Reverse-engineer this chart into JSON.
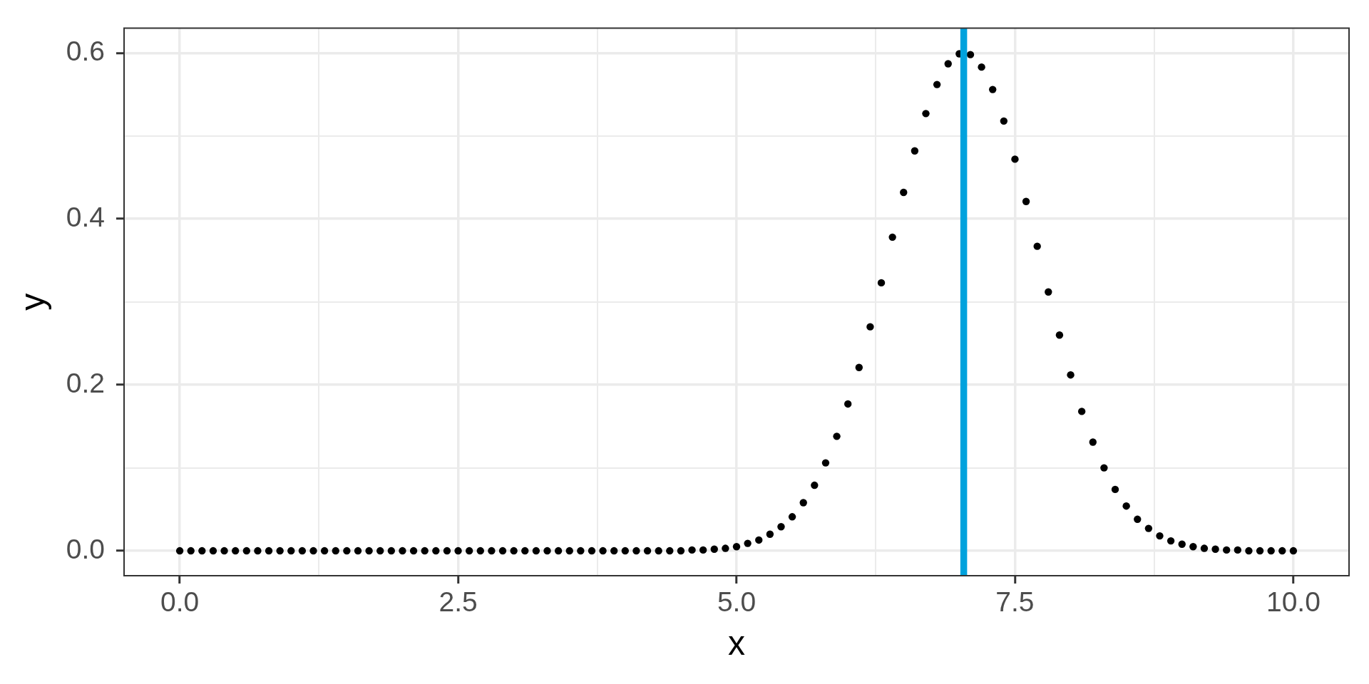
{
  "chart_data": {
    "type": "scatter",
    "xlabel": "x",
    "ylabel": "y",
    "x": [
      0,
      0.1,
      0.2,
      0.3,
      0.4,
      0.5,
      0.6,
      0.7,
      0.8,
      0.9,
      1,
      1.1,
      1.2,
      1.3,
      1.4,
      1.5,
      1.6,
      1.7,
      1.8,
      1.9,
      2,
      2.1,
      2.2,
      2.3,
      2.4,
      2.5,
      2.6,
      2.7,
      2.8,
      2.9,
      3,
      3.1,
      3.2,
      3.3,
      3.4,
      3.5,
      3.6,
      3.7,
      3.8,
      3.9,
      4,
      4.1,
      4.2,
      4.3,
      4.4,
      4.5,
      4.6,
      4.7,
      4.8,
      4.9,
      5,
      5.1,
      5.2,
      5.3,
      5.4,
      5.5,
      5.6,
      5.7,
      5.8,
      5.9,
      6,
      6.1,
      6.2,
      6.3,
      6.4,
      6.5,
      6.6,
      6.7,
      6.8,
      6.9,
      7,
      7.1,
      7.2,
      7.3,
      7.4,
      7.5,
      7.6,
      7.7,
      7.8,
      7.9,
      8,
      8.1,
      8.2,
      8.3,
      8.4,
      8.5,
      8.6,
      8.7,
      8.8,
      8.9,
      9,
      9.1,
      9.2,
      9.3,
      9.4,
      9.5,
      9.6,
      9.7,
      9.8,
      9.9,
      10
    ],
    "values": [
      0,
      0,
      0,
      0,
      0,
      0,
      0,
      0,
      0,
      0,
      0,
      0,
      0,
      0,
      0,
      0,
      0,
      0,
      0,
      0,
      0,
      0,
      0,
      0,
      0,
      0,
      0,
      0,
      0,
      0,
      0,
      0,
      0,
      0,
      0,
      0,
      0,
      0,
      0,
      0,
      0,
      0,
      0,
      0,
      0,
      0,
      0.001,
      0.001,
      0.002,
      0.003,
      0.005,
      0.009,
      0.013,
      0.02,
      0.029,
      0.041,
      0.058,
      0.079,
      0.106,
      0.138,
      0.177,
      0.221,
      0.27,
      0.323,
      0.378,
      0.432,
      0.482,
      0.527,
      0.562,
      0.587,
      0.599,
      0.598,
      0.583,
      0.556,
      0.518,
      0.472,
      0.421,
      0.367,
      0.312,
      0.26,
      0.212,
      0.168,
      0.131,
      0.1,
      0.074,
      0.054,
      0.038,
      0.027,
      0.018,
      0.012,
      0.008,
      0.005,
      0.003,
      0.002,
      0.001,
      0.001,
      0,
      0,
      0,
      0,
      0
    ],
    "color": "#000000",
    "marker": "circle",
    "xlim": [
      -0.5,
      10.5
    ],
    "xticks": [
      {
        "value": 0,
        "label": "0.0"
      },
      {
        "value": 1.25,
        "label": null
      },
      {
        "value": 2.5,
        "label": "2.5"
      },
      {
        "value": 3.75,
        "label": null
      },
      {
        "value": 5,
        "label": "5.0"
      },
      {
        "value": 6.25,
        "label": null
      },
      {
        "value": 7.5,
        "label": "7.5"
      },
      {
        "value": 8.75,
        "label": null
      },
      {
        "value": 10,
        "label": "10.0"
      }
    ],
    "ylim": [
      -0.03,
      0.63
    ],
    "yticks": [
      {
        "value": 0,
        "label": "0.0"
      },
      {
        "value": 0.1,
        "label": null
      },
      {
        "value": 0.2,
        "label": "0.2"
      },
      {
        "value": 0.3,
        "label": null
      },
      {
        "value": 0.4,
        "label": "0.4"
      },
      {
        "value": 0.5,
        "label": null
      },
      {
        "value": 0.6,
        "label": "0.6"
      }
    ],
    "ref_lines": [
      {
        "axis": "x",
        "value": 7.04,
        "color": "#00a2dd"
      }
    ],
    "grid": true
  }
}
